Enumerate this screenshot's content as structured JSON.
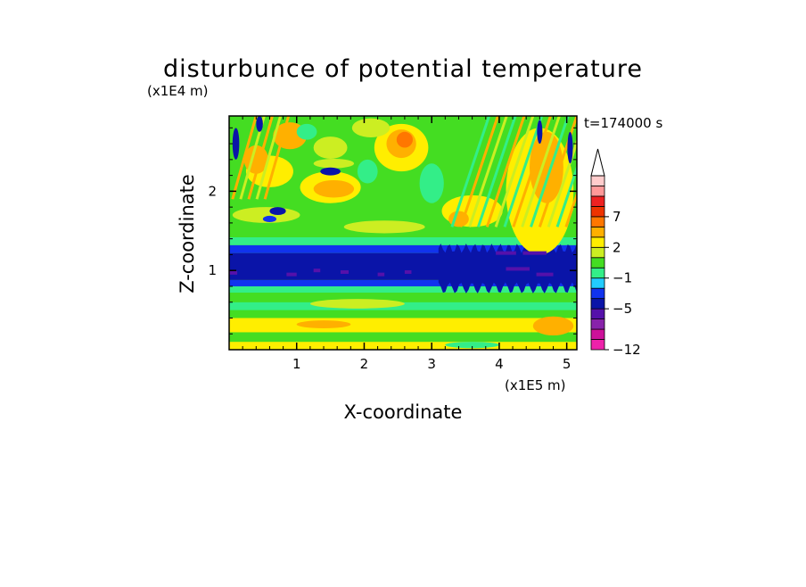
{
  "chart_data": {
    "type": "heatmap",
    "title": "disturbunce of potential temperature",
    "y_unit": "(x1E4 m)",
    "x_unit": "(x1E5 m)",
    "xlabel": "X-coordinate",
    "ylabel": "Z-coordinate",
    "time_label": "t=174000 s",
    "xlim": [
      0,
      5.15
    ],
    "ylim": [
      0,
      2.95
    ],
    "xticks": [
      "1",
      "2",
      "3",
      "4",
      "5"
    ],
    "xtick_values": [
      1,
      2,
      3,
      4,
      5
    ],
    "yticks": [
      "1",
      "2"
    ],
    "ytick_values": [
      1,
      2
    ],
    "colorbar": {
      "levels": [
        -12,
        -10,
        -8,
        -6,
        -5,
        -3,
        -2,
        -1,
        0,
        1,
        2,
        3,
        5,
        7,
        8,
        9,
        10
      ],
      "labels": [
        "7",
        "2",
        "−1",
        "−5",
        "−12"
      ],
      "label_values": [
        7,
        2,
        -1,
        -5,
        -12
      ],
      "colors": [
        "#ee22aa",
        "#cc1199",
        "#8822aa",
        "#5511aa",
        "#0a14a8",
        "#1133ee",
        "#22ccff",
        "#33ee88",
        "#44dd22",
        "#ccee22",
        "#ffee00",
        "#ffb000",
        "#ff7700",
        "#ee3300",
        "#ee2222",
        "#ff9999",
        "#ffcccc"
      ],
      "extend_max": true
    },
    "bands": [
      {
        "z": [
          0.0,
          0.1
        ],
        "level": 2
      },
      {
        "z": [
          0.1,
          0.22
        ],
        "level": 0
      },
      {
        "z": [
          0.22,
          0.4
        ],
        "level": 2
      },
      {
        "z": [
          0.4,
          0.5
        ],
        "level": 0
      },
      {
        "z": [
          0.5,
          0.6
        ],
        "level": -1
      },
      {
        "z": [
          0.6,
          0.72
        ],
        "level": 0
      },
      {
        "z": [
          0.72,
          0.8
        ],
        "level": -1
      },
      {
        "z": [
          0.8,
          0.88
        ],
        "level": -3
      },
      {
        "z": [
          0.88,
          1.22
        ],
        "level": -5
      },
      {
        "z": [
          1.22,
          1.32
        ],
        "level": -3
      },
      {
        "z": [
          1.32,
          1.42
        ],
        "level": -1
      },
      {
        "z": [
          1.42,
          1.55
        ],
        "level": 0
      },
      {
        "z": [
          1.55,
          2.95
        ],
        "level": 0
      }
    ],
    "blobs": [
      {
        "x": 0.9,
        "z": 2.7,
        "rx": 0.25,
        "rz": 0.17,
        "level": 3
      },
      {
        "x": 0.6,
        "z": 2.25,
        "rx": 0.35,
        "rz": 0.2,
        "level": 2
      },
      {
        "x": 0.4,
        "z": 2.4,
        "rx": 0.18,
        "rz": 0.18,
        "level": 3
      },
      {
        "x": 1.5,
        "z": 2.05,
        "rx": 0.45,
        "rz": 0.2,
        "level": 2
      },
      {
        "x": 1.55,
        "z": 2.03,
        "rx": 0.3,
        "rz": 0.11,
        "level": 3
      },
      {
        "x": 1.5,
        "z": 2.55,
        "rx": 0.25,
        "rz": 0.14,
        "level": 1
      },
      {
        "x": 2.55,
        "z": 2.55,
        "rx": 0.4,
        "rz": 0.3,
        "level": 2
      },
      {
        "x": 2.55,
        "z": 2.6,
        "rx": 0.22,
        "rz": 0.18,
        "level": 3
      },
      {
        "x": 2.6,
        "z": 2.65,
        "rx": 0.12,
        "rz": 0.1,
        "level": 5
      },
      {
        "x": 2.1,
        "z": 2.8,
        "rx": 0.28,
        "rz": 0.12,
        "level": 1
      },
      {
        "x": 3.6,
        "z": 1.75,
        "rx": 0.45,
        "rz": 0.2,
        "level": 2
      },
      {
        "x": 3.4,
        "z": 1.65,
        "rx": 0.15,
        "rz": 0.1,
        "level": 3
      },
      {
        "x": 4.6,
        "z": 2.0,
        "rx": 0.5,
        "rz": 0.8,
        "level": 2
      },
      {
        "x": 4.7,
        "z": 2.3,
        "rx": 0.25,
        "rz": 0.45,
        "level": 3
      },
      {
        "x": 3.0,
        "z": 2.1,
        "rx": 0.18,
        "rz": 0.25,
        "level": -1
      },
      {
        "x": 2.05,
        "z": 2.25,
        "rx": 0.15,
        "rz": 0.15,
        "level": -1
      },
      {
        "x": 1.15,
        "z": 2.75,
        "rx": 0.15,
        "rz": 0.1,
        "level": -1
      },
      {
        "x": 1.55,
        "z": 2.35,
        "rx": 0.3,
        "rz": 0.06,
        "level": 1
      },
      {
        "x": 0.55,
        "z": 1.7,
        "rx": 0.5,
        "rz": 0.1,
        "level": 1
      },
      {
        "x": 2.3,
        "z": 1.55,
        "rx": 0.6,
        "rz": 0.08,
        "level": 1
      },
      {
        "x": 1.9,
        "z": 0.58,
        "rx": 0.7,
        "rz": 0.06,
        "level": 1
      },
      {
        "x": 4.8,
        "z": 0.3,
        "rx": 0.3,
        "rz": 0.12,
        "level": 3
      },
      {
        "x": 1.4,
        "z": 0.32,
        "rx": 0.4,
        "rz": 0.05,
        "level": 3
      }
    ],
    "negative_spots": [
      {
        "x": 1.5,
        "z": 2.25,
        "rx": 0.15,
        "rz": 0.05,
        "level": -5
      },
      {
        "x": 0.72,
        "z": 1.75,
        "rx": 0.12,
        "rz": 0.05,
        "level": -5
      },
      {
        "x": 0.6,
        "z": 1.65,
        "rx": 0.1,
        "rz": 0.04,
        "level": -3
      },
      {
        "x": 0.1,
        "z": 2.6,
        "rx": 0.05,
        "rz": 0.2,
        "level": -5
      },
      {
        "x": 0.45,
        "z": 2.85,
        "rx": 0.05,
        "rz": 0.1,
        "level": -5
      },
      {
        "x": 4.6,
        "z": 2.75,
        "rx": 0.04,
        "rz": 0.15,
        "level": -5
      },
      {
        "x": 5.05,
        "z": 2.55,
        "rx": 0.04,
        "rz": 0.2,
        "level": -5
      },
      {
        "x": 3.6,
        "z": 0.06,
        "rx": 0.4,
        "rz": 0.04,
        "level": -1
      }
    ],
    "dark_streaks": [
      {
        "x": 0.0,
        "z": 0.97,
        "w": 0.12
      },
      {
        "x": 0.85,
        "z": 0.95,
        "w": 0.15
      },
      {
        "x": 1.25,
        "z": 1.0,
        "w": 0.1
      },
      {
        "x": 1.65,
        "z": 0.98,
        "w": 0.12
      },
      {
        "x": 2.2,
        "z": 0.95,
        "w": 0.1
      },
      {
        "x": 2.6,
        "z": 0.98,
        "w": 0.1
      },
      {
        "x": 3.95,
        "z": 1.22,
        "w": 0.3
      },
      {
        "x": 4.35,
        "z": 1.22,
        "w": 0.35
      },
      {
        "x": 4.1,
        "z": 1.02,
        "w": 0.35
      },
      {
        "x": 4.55,
        "z": 0.95,
        "w": 0.25
      }
    ]
  }
}
